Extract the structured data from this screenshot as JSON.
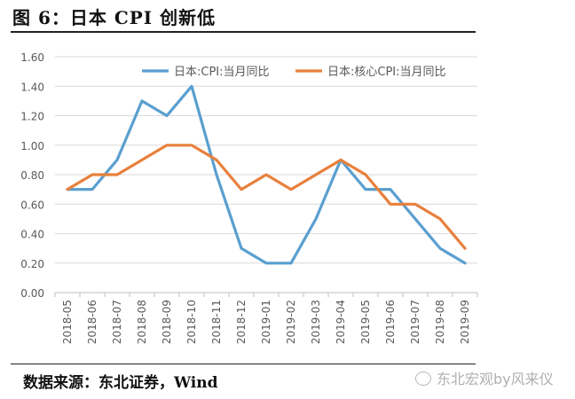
{
  "figure_title": "图 6：日本 CPI 创新低",
  "source_note": "数据来源：东北证券，Wind",
  "watermark": "东北宏观by风来仪",
  "watermark_icon": "wechat-icon",
  "chart_data": {
    "type": "line",
    "title": "",
    "xlabel": "",
    "ylabel": "",
    "ylim": [
      0,
      1.6
    ],
    "yticks": [
      "0.00",
      "0.20",
      "0.40",
      "0.60",
      "0.80",
      "1.00",
      "1.20",
      "1.40",
      "1.60"
    ],
    "grid": true,
    "legend_position": "top",
    "categories": [
      "2018-05",
      "2018-06",
      "2018-07",
      "2018-08",
      "2018-09",
      "2018-10",
      "2018-11",
      "2018-12",
      "2019-01",
      "2019-02",
      "2019-03",
      "2019-04",
      "2019-05",
      "2019-06",
      "2019-07",
      "2019-08",
      "2019-09"
    ],
    "series": [
      {
        "name": "日本:CPI:当月同比",
        "color": "#5a9fd0",
        "values": [
          0.7,
          0.7,
          0.9,
          1.3,
          1.2,
          1.4,
          0.8,
          0.3,
          0.2,
          0.2,
          0.5,
          0.9,
          0.7,
          0.7,
          0.5,
          0.3,
          0.2
        ]
      },
      {
        "name": "日本:核心CPI:当月同比",
        "color": "#e8803c",
        "values": [
          0.7,
          0.8,
          0.8,
          0.9,
          1.0,
          1.0,
          0.9,
          0.7,
          0.8,
          0.7,
          0.8,
          0.9,
          0.8,
          0.6,
          0.6,
          0.5,
          0.3
        ]
      }
    ]
  }
}
